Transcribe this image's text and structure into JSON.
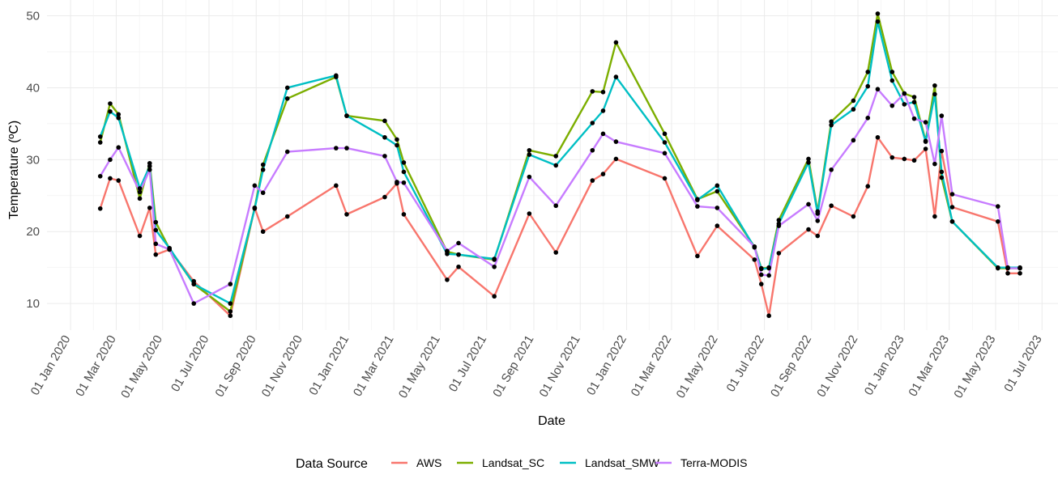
{
  "chart_data": {
    "type": "line",
    "title": "",
    "xlabel": "Date",
    "ylabel": "Temperature (ºC)",
    "ylim": [
      6.3,
      52.2
    ],
    "xlim": [
      "2019-12-01",
      "2023-07-22"
    ],
    "yticks": [
      10,
      20,
      30,
      40,
      50
    ],
    "ytick_labels": [
      "10",
      "20",
      "30",
      "40",
      "50"
    ],
    "xticks": [
      "2020-01-01",
      "2020-03-01",
      "2020-05-01",
      "2020-07-01",
      "2020-09-01",
      "2020-11-01",
      "2021-01-01",
      "2021-03-01",
      "2021-05-01",
      "2021-07-01",
      "2021-09-01",
      "2021-11-01",
      "2022-01-01",
      "2022-03-01",
      "2022-05-01",
      "2022-07-01",
      "2022-09-01",
      "2022-11-01",
      "2023-01-01",
      "2023-03-01",
      "2023-05-01",
      "2023-07-01"
    ],
    "xtick_labels": [
      "01 Jan 2020",
      "01 Mar 2020",
      "01 May 2020",
      "01 Jul 2020",
      "01 Sep 2020",
      "01 Nov 2020",
      "01 Jan 2021",
      "01 Mar 2021",
      "01 May 2021",
      "01 Jul 2021",
      "01 Sep 2021",
      "01 Nov 2021",
      "01 Jan 2022",
      "01 Mar 2022",
      "01 May 2022",
      "01 Jul 2022",
      "01 Sep 2022",
      "01 Nov 2022",
      "01 Jan 2023",
      "01 Mar 2023",
      "01 May 2023",
      "01 Jul 2023"
    ],
    "grid": true,
    "legend_position": "bottom",
    "legend_title": "Data Source",
    "x": [
      "2020-02-09",
      "2020-02-22",
      "2020-03-04",
      "2020-04-01",
      "2020-04-14",
      "2020-04-22",
      "2020-05-10",
      "2020-06-11",
      "2020-07-29",
      "2020-08-30",
      "2020-09-10",
      "2020-10-12",
      "2020-12-15",
      "2020-12-29",
      "2021-02-17",
      "2021-03-05",
      "2021-03-14",
      "2021-05-10",
      "2021-05-25",
      "2021-07-11",
      "2021-08-26",
      "2021-09-30",
      "2021-11-17",
      "2021-12-01",
      "2021-12-18",
      "2022-02-20",
      "2022-04-04",
      "2022-04-30",
      "2022-06-18",
      "2022-06-27",
      "2022-07-07",
      "2022-07-20",
      "2022-08-28",
      "2022-09-09",
      "2022-09-27",
      "2022-10-26",
      "2022-11-14",
      "2022-11-27",
      "2022-12-16",
      "2023-01-01",
      "2023-01-14",
      "2023-01-29",
      "2023-02-10",
      "2023-02-19",
      "2023-03-05",
      "2023-05-04",
      "2023-05-17",
      "2023-06-02"
    ],
    "series": [
      {
        "name": "AWS",
        "color": "#f8766d",
        "values": [
          23.2,
          27.4,
          27.1,
          19.4,
          23.3,
          16.8,
          17.5,
          13.1,
          8.3,
          23.3,
          20.0,
          22.1,
          26.4,
          22.4,
          24.8,
          26.7,
          22.4,
          13.3,
          15.1,
          11.0,
          22.5,
          17.1,
          27.1,
          28.0,
          30.1,
          27.4,
          16.6,
          20.8,
          16.1,
          12.7,
          8.3,
          17.0,
          20.3,
          19.4,
          23.6,
          22.1,
          26.3,
          33.1,
          30.3,
          30.1,
          29.9,
          31.5,
          22.1,
          31.2,
          23.4,
          21.4,
          14.2,
          14.2
        ]
      },
      {
        "name": "Landsat_SC",
        "color": "#7cae00",
        "values": [
          32.4,
          37.8,
          36.3,
          24.6,
          29.5,
          21.3,
          17.6,
          12.7,
          8.9,
          23.3,
          29.3,
          38.5,
          41.5,
          36.1,
          35.4,
          32.8,
          29.6,
          17.2,
          16.8,
          16.1,
          31.3,
          30.5,
          39.5,
          39.4,
          46.3,
          33.6,
          24.5,
          25.6,
          17.9,
          14.9,
          15.0,
          21.6,
          30.1,
          22.8,
          35.3,
          38.2,
          42.2,
          50.3,
          42.2,
          39.2,
          38.7,
          32.6,
          40.3,
          27.5,
          21.4,
          14.9,
          14.9,
          14.9
        ]
      },
      {
        "name": "Landsat_SMW",
        "color": "#00bfc4",
        "values": [
          33.2,
          36.7,
          35.8,
          26.0,
          29.1,
          20.2,
          17.7,
          12.7,
          10.0,
          23.2,
          28.6,
          40.0,
          41.7,
          36.1,
          33.1,
          32.0,
          28.3,
          16.9,
          16.8,
          16.2,
          30.7,
          29.2,
          35.1,
          36.8,
          41.5,
          32.4,
          24.4,
          26.4,
          17.8,
          14.8,
          14.9,
          21.1,
          29.6,
          22.5,
          34.8,
          37.0,
          40.2,
          49.2,
          41.0,
          37.7,
          38.0,
          32.5,
          39.1,
          28.3,
          21.4,
          15.0,
          15.0,
          15.0
        ]
      },
      {
        "name": "Terra-MODIS",
        "color": "#c77cff",
        "values": [
          27.7,
          30.0,
          31.7,
          25.5,
          28.6,
          18.3,
          17.5,
          10.0,
          12.7,
          26.4,
          25.4,
          31.1,
          31.6,
          31.6,
          30.5,
          26.9,
          26.8,
          17.3,
          18.4,
          15.1,
          27.6,
          23.6,
          31.3,
          33.6,
          32.5,
          30.9,
          23.5,
          23.3,
          17.9,
          14.0,
          13.9,
          20.8,
          23.8,
          21.5,
          28.6,
          32.7,
          35.8,
          39.8,
          37.5,
          39.2,
          35.7,
          35.2,
          29.4,
          36.1,
          25.2,
          23.5,
          14.9,
          14.9
        ]
      }
    ]
  }
}
